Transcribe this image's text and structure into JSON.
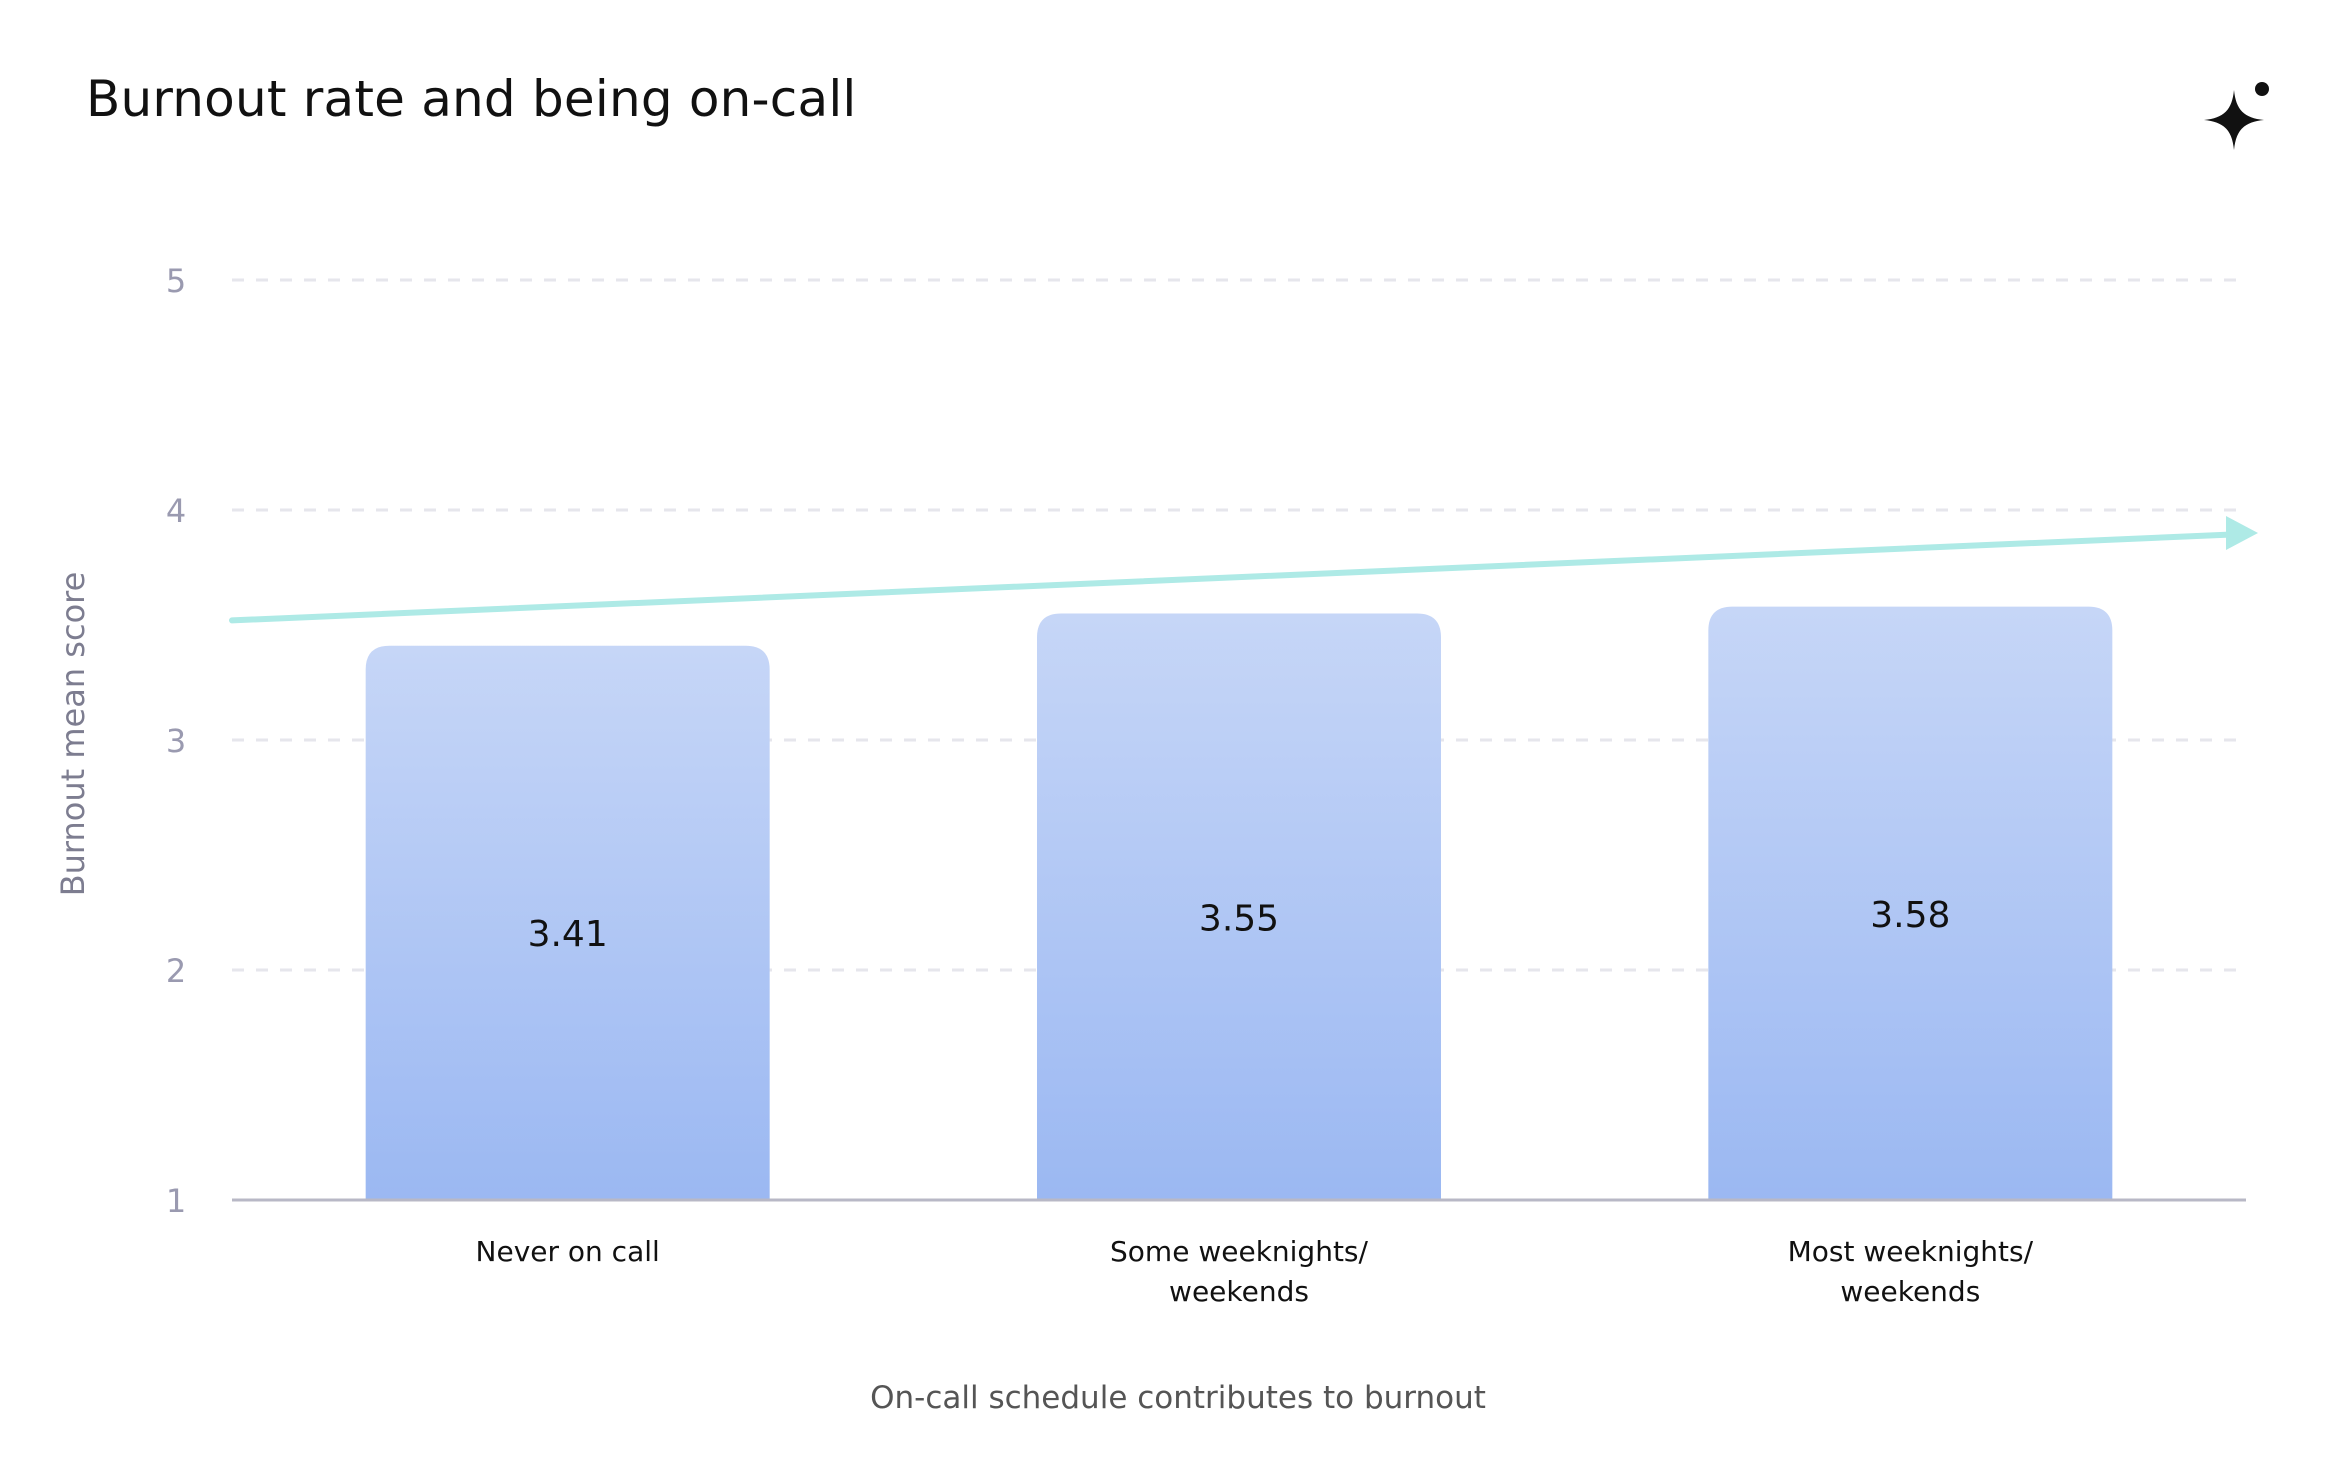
{
  "chart_data": {
    "type": "bar",
    "title": "Burnout rate and being on-call",
    "xlabel": "On-call schedule contributes to burnout",
    "ylabel": "Burnout mean score",
    "categories": [
      [
        "Never on call"
      ],
      [
        "Some weeknights/",
        "weekends"
      ],
      [
        "Most weeknights/",
        "weekends"
      ]
    ],
    "values": [
      3.41,
      3.55,
      3.58
    ],
    "value_labels": [
      "3.41",
      "3.55",
      "3.58"
    ],
    "yticks": [
      "1",
      "2",
      "3",
      "4",
      "5"
    ],
    "ylim": [
      1,
      5
    ],
    "grid": true,
    "trend_arrow": {
      "from": 3.52,
      "to": 3.9
    },
    "colors": {
      "bar_top": "#c6d6f7",
      "bar_bottom": "#9bb8f2",
      "trend": "#aeeae6",
      "grid": "#e6e6ec",
      "axis": "#b8b8c6"
    }
  },
  "logo": {
    "icon": "sparkle-icon"
  }
}
